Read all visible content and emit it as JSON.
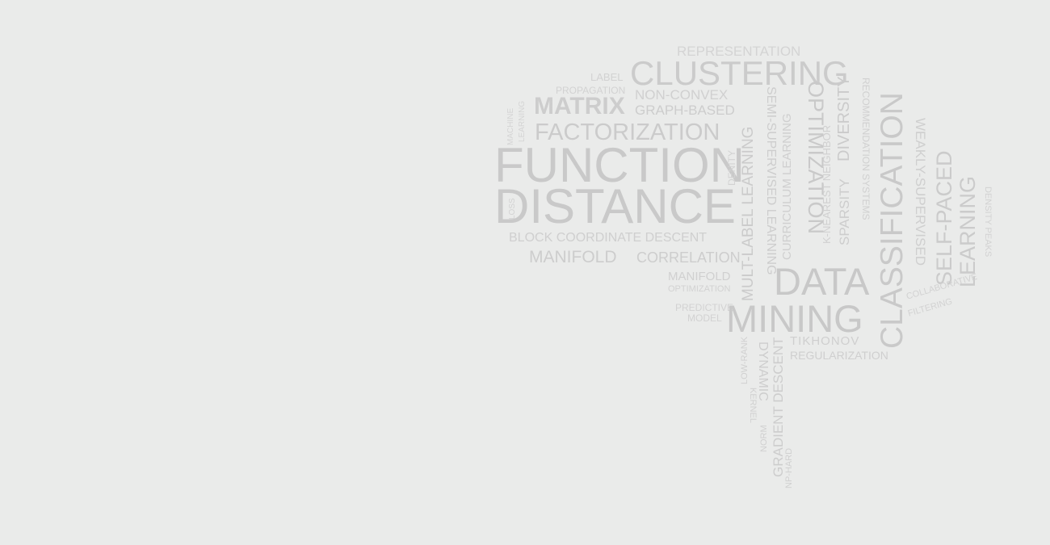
{
  "colors": {
    "background": "#eaebea",
    "word_light": "#d2d2d2",
    "word_mid": "#c8c8c8"
  },
  "words": [
    {
      "id": "representation",
      "text": "REPRESENTATION"
    },
    {
      "id": "clustering",
      "text": "CLUSTERING"
    },
    {
      "id": "label",
      "text": "LABEL"
    },
    {
      "id": "propagation",
      "text": "PROPAGATION"
    },
    {
      "id": "non-convex",
      "text": "NON-CONVEX"
    },
    {
      "id": "matrix",
      "text": "MATRIX"
    },
    {
      "id": "graph-based",
      "text": "GRAPH-BASED"
    },
    {
      "id": "factorization",
      "text": "FACTORIZATION"
    },
    {
      "id": "machine",
      "text": "MACHINE"
    },
    {
      "id": "learning",
      "text": "LEARNING"
    },
    {
      "id": "loss",
      "text": "LOSS"
    },
    {
      "id": "function",
      "text": "FUNCTION"
    },
    {
      "id": "distance",
      "text": "DISTANCE"
    },
    {
      "id": "denity",
      "text": "DENITY"
    },
    {
      "id": "block-coordinate-descent",
      "text": "BLOCK COORDINATE DESCENT"
    },
    {
      "id": "manifold",
      "text": "MANIFOLD"
    },
    {
      "id": "correlation",
      "text": "CORRELATION"
    },
    {
      "id": "manifold-small",
      "text": "MANIFOLD"
    },
    {
      "id": "optimization-small",
      "text": "OPTIMIZATION"
    },
    {
      "id": "predictive",
      "text": "PREDICTIVE"
    },
    {
      "id": "model",
      "text": "MODEL"
    },
    {
      "id": "mult-label-learning",
      "text": "MULT-LABEL LEARNING"
    },
    {
      "id": "semi-supervised-learning",
      "text": "SEMI-SUPERVISED LEARNING"
    },
    {
      "id": "curriculum-learning",
      "text": "CURRICULUM LEARNING"
    },
    {
      "id": "optimization",
      "text": "OPTIMIZATION"
    },
    {
      "id": "k-nearest-neighbor",
      "text": "K-NEAREST NEIGHBOR"
    },
    {
      "id": "diversity",
      "text": "DIVERSITY"
    },
    {
      "id": "sparsity",
      "text": "SPARSITY"
    },
    {
      "id": "recommendation-systems",
      "text": "RECOMMENDATION SYSTEMS"
    },
    {
      "id": "data",
      "text": "DATA"
    },
    {
      "id": "mining",
      "text": "MINING"
    },
    {
      "id": "classification",
      "text": "CLASSIFICATION"
    },
    {
      "id": "weakly-supervised",
      "text": "WEAKLY-SUPERVISED"
    },
    {
      "id": "self-paced",
      "text": "SELF-PACED"
    },
    {
      "id": "learning-right",
      "text": "LEARNING"
    },
    {
      "id": "density-peaks",
      "text": "DENSITY PEAKS"
    },
    {
      "id": "collaborative",
      "text": "COLLABORATIVE"
    },
    {
      "id": "filtering",
      "text": "FILTERING"
    },
    {
      "id": "tikhonov",
      "text": "TIKHONOV"
    },
    {
      "id": "regularization",
      "text": "REGULARIZATION"
    },
    {
      "id": "low-rank",
      "text": "LOW-RANK"
    },
    {
      "id": "kernel",
      "text": "KERNEL"
    },
    {
      "id": "norm",
      "text": "NORM"
    },
    {
      "id": "dynamic",
      "text": "DYNAMIC"
    },
    {
      "id": "gradient-descent",
      "text": "GRADIENT DESCENT"
    },
    {
      "id": "np-hard",
      "text": "NP-HARD"
    }
  ]
}
